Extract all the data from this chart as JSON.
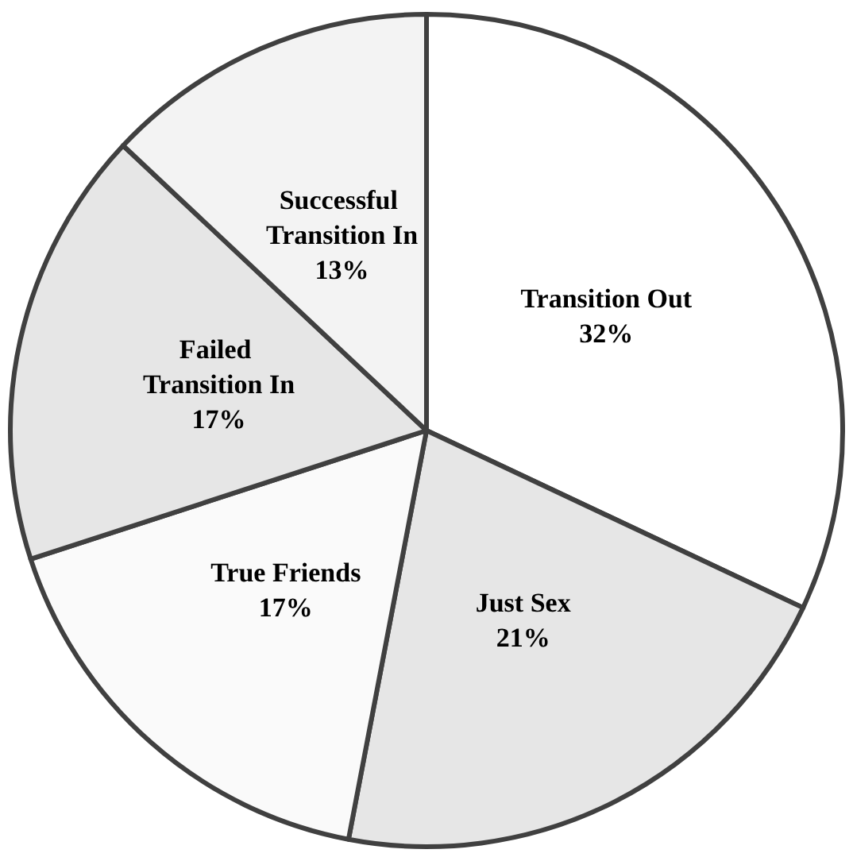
{
  "chart_data": {
    "type": "pie",
    "categories": [
      "Transition Out",
      "Just Sex",
      "True Friends",
      "Failed Transition In",
      "Successful Transition In"
    ],
    "values": [
      32,
      21,
      17,
      17,
      13
    ],
    "value_labels": [
      "32%",
      "21%",
      "17%",
      "17%",
      "13%"
    ],
    "colors": [
      "#ffffff",
      "#e6e6e6",
      "#fafafa",
      "#e6e6e6",
      "#f3f3f3"
    ],
    "legend": false
  }
}
